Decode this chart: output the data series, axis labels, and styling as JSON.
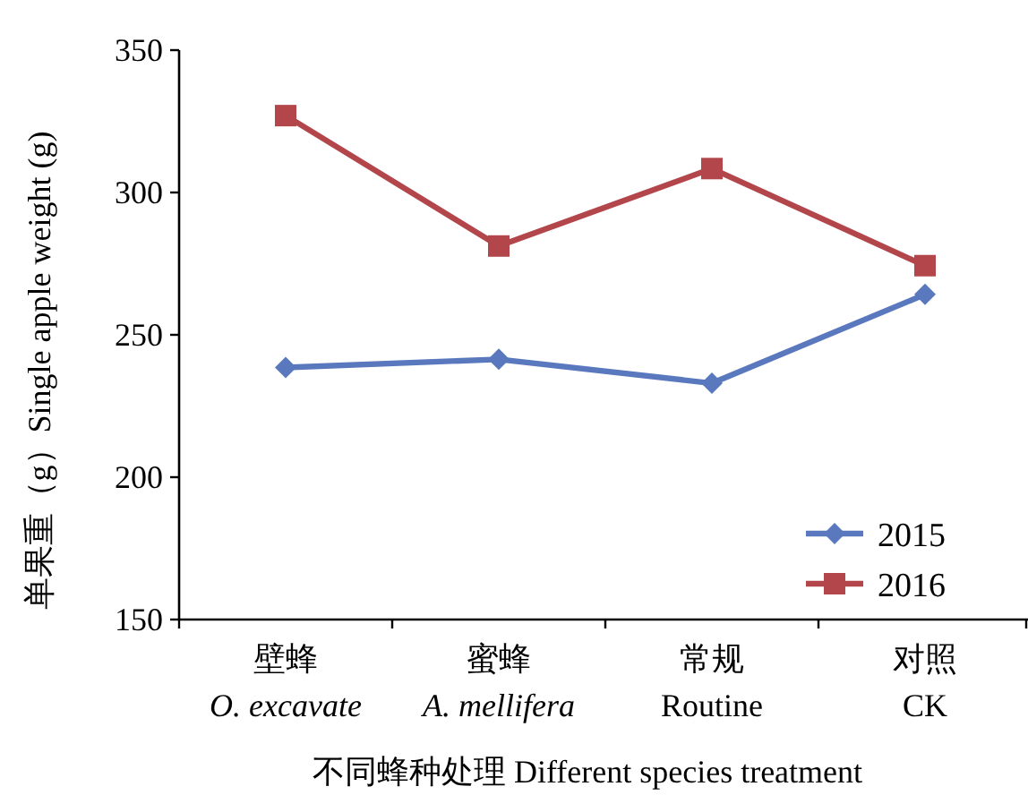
{
  "chart_data": {
    "type": "line",
    "xlabel": "不同蜂种处理 Different species treatment",
    "ylabel": "单果重（g）Single apple weight (g)",
    "categories": [
      "壁蜂\n*O. excavate*",
      "蜜蜂\n*A. mellifera*",
      "常规\nRoutine",
      "对照\nCK"
    ],
    "series": [
      {
        "name": "2015",
        "color": "#5a78bd",
        "marker": "diamond",
        "values": [
          238.5,
          241.4,
          233,
          264.2
        ]
      },
      {
        "name": "2016",
        "color": "#b2464b",
        "marker": "square",
        "values": [
          327,
          281.2,
          308.4,
          274.3
        ]
      }
    ],
    "ylim": [
      150,
      350
    ],
    "yticks": [
      150,
      200,
      250,
      300,
      350
    ],
    "legend": "bottom right",
    "grid": false
  }
}
